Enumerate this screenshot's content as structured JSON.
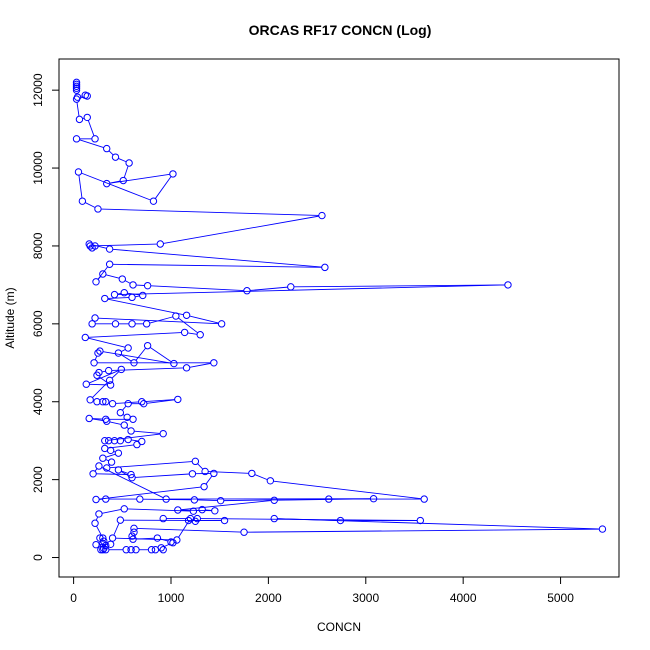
{
  "chart_data": {
    "type": "line",
    "title": "ORCAS RF17 CONCN (Log)",
    "xlabel": "CONCN",
    "ylabel": "Altitude (m)",
    "xlim": [
      -150,
      5600
    ],
    "ylim": [
      -500,
      12800
    ],
    "x_ticks": [
      0,
      1000,
      2000,
      3000,
      4000,
      5000
    ],
    "y_ticks": [
      0,
      2000,
      4000,
      6000,
      8000,
      10000,
      12000
    ],
    "x_tick_labels": [
      "0",
      "1000",
      "2000",
      "3000",
      "4000",
      "5000"
    ],
    "y_tick_labels": [
      "0",
      "2000",
      "4000",
      "6000",
      "8000",
      "10000",
      "12000"
    ],
    "grid": false,
    "line_style": "lines with open circle markers",
    "series": [
      {
        "color": "#0000ff",
        "points": [
          [
            30,
            12200
          ],
          [
            30,
            12150
          ],
          [
            30,
            12100
          ],
          [
            30,
            12050
          ],
          [
            30,
            12000
          ],
          [
            40,
            11820
          ],
          [
            120,
            11870
          ],
          [
            140,
            11850
          ],
          [
            30,
            11770
          ],
          [
            60,
            11250
          ],
          [
            140,
            11300
          ],
          [
            220,
            10750
          ],
          [
            30,
            10750
          ],
          [
            340,
            10500
          ],
          [
            430,
            10280
          ],
          [
            570,
            10130
          ],
          [
            510,
            9680
          ],
          [
            340,
            9600
          ],
          [
            1020,
            9850
          ],
          [
            820,
            9150
          ],
          [
            50,
            9900
          ],
          [
            90,
            9150
          ],
          [
            250,
            8950
          ],
          [
            2550,
            8780
          ],
          [
            890,
            8050
          ],
          [
            170,
            8000
          ],
          [
            190,
            7950
          ],
          [
            220,
            8000
          ],
          [
            160,
            8050
          ],
          [
            370,
            7920
          ],
          [
            2580,
            7450
          ],
          [
            370,
            7530
          ],
          [
            230,
            7080
          ],
          [
            300,
            7280
          ],
          [
            500,
            7150
          ],
          [
            610,
            7000
          ],
          [
            760,
            6980
          ],
          [
            1780,
            6850
          ],
          [
            2230,
            6950
          ],
          [
            4460,
            7000
          ],
          [
            420,
            6750
          ],
          [
            520,
            6800
          ],
          [
            710,
            6730
          ],
          [
            600,
            6680
          ],
          [
            320,
            6650
          ],
          [
            1160,
            6220
          ],
          [
            1520,
            6000
          ],
          [
            220,
            6150
          ],
          [
            190,
            6000
          ],
          [
            430,
            6000
          ],
          [
            600,
            6000
          ],
          [
            750,
            6000
          ],
          [
            1050,
            6200
          ],
          [
            1300,
            5720
          ],
          [
            1140,
            5780
          ],
          [
            120,
            5650
          ],
          [
            560,
            5380
          ],
          [
            460,
            5250
          ],
          [
            620,
            5000
          ],
          [
            760,
            5440
          ],
          [
            1030,
            4980
          ],
          [
            270,
            5300
          ],
          [
            250,
            5250
          ],
          [
            210,
            5000
          ],
          [
            1440,
            5000
          ],
          [
            1160,
            4870
          ],
          [
            360,
            4800
          ],
          [
            260,
            4750
          ],
          [
            240,
            4680
          ],
          [
            380,
            4430
          ],
          [
            130,
            4450
          ],
          [
            490,
            4830
          ],
          [
            370,
            4550
          ],
          [
            170,
            4050
          ],
          [
            240,
            4000
          ],
          [
            300,
            4000
          ],
          [
            330,
            4000
          ],
          [
            400,
            3950
          ],
          [
            700,
            4000
          ],
          [
            1070,
            4060
          ],
          [
            720,
            3950
          ],
          [
            560,
            3950
          ],
          [
            480,
            3720
          ],
          [
            550,
            3600
          ],
          [
            610,
            3550
          ],
          [
            330,
            3550
          ],
          [
            160,
            3570
          ],
          [
            340,
            3500
          ],
          [
            520,
            3400
          ],
          [
            590,
            3250
          ],
          [
            920,
            3180
          ],
          [
            320,
            3000
          ],
          [
            360,
            3000
          ],
          [
            420,
            3000
          ],
          [
            480,
            3000
          ],
          [
            560,
            3030
          ],
          [
            700,
            2980
          ],
          [
            650,
            2900
          ],
          [
            320,
            2800
          ],
          [
            380,
            2750
          ],
          [
            460,
            2680
          ],
          [
            300,
            2550
          ],
          [
            390,
            2450
          ],
          [
            340,
            2300
          ],
          [
            1250,
            2470
          ],
          [
            1350,
            2210
          ],
          [
            1830,
            2160
          ],
          [
            2020,
            1970
          ],
          [
            3600,
            1500
          ],
          [
            2620,
            1500
          ],
          [
            1510,
            1460
          ],
          [
            1240,
            1480
          ],
          [
            680,
            1500
          ],
          [
            330,
            1500
          ],
          [
            230,
            1490
          ],
          [
            1340,
            1820
          ],
          [
            1440,
            2160
          ],
          [
            1220,
            2150
          ],
          [
            600,
            2050
          ],
          [
            460,
            2250
          ],
          [
            590,
            2130
          ],
          [
            200,
            2150
          ],
          [
            260,
            2350
          ],
          [
            950,
            1500
          ],
          [
            3080,
            1510
          ],
          [
            2060,
            1470
          ],
          [
            1070,
            1220
          ],
          [
            1450,
            1200
          ],
          [
            1320,
            1230
          ],
          [
            1230,
            1190
          ],
          [
            520,
            1250
          ],
          [
            260,
            1120
          ],
          [
            220,
            880
          ],
          [
            300,
            500
          ],
          [
            270,
            500
          ],
          [
            310,
            420
          ],
          [
            300,
            360
          ],
          [
            230,
            330
          ],
          [
            380,
            340
          ],
          [
            330,
            310
          ],
          [
            310,
            230
          ],
          [
            280,
            200
          ],
          [
            300,
            200
          ],
          [
            330,
            200
          ],
          [
            540,
            200
          ],
          [
            590,
            200
          ],
          [
            640,
            200
          ],
          [
            800,
            200
          ],
          [
            840,
            200
          ],
          [
            920,
            200
          ],
          [
            900,
            250
          ],
          [
            1020,
            380
          ],
          [
            1000,
            400
          ],
          [
            860,
            500
          ],
          [
            610,
            470
          ],
          [
            600,
            550
          ],
          [
            620,
            650
          ],
          [
            620,
            750
          ],
          [
            1750,
            650
          ],
          [
            5430,
            730
          ],
          [
            2060,
            1000
          ],
          [
            2740,
            950
          ],
          [
            3560,
            950
          ],
          [
            1270,
            1000
          ],
          [
            1250,
            930
          ],
          [
            1180,
            950
          ],
          [
            1550,
            950
          ],
          [
            480,
            960
          ],
          [
            400,
            500
          ],
          [
            1060,
            450
          ],
          [
            1200,
            1000
          ],
          [
            920,
            1000
          ]
        ]
      }
    ]
  }
}
